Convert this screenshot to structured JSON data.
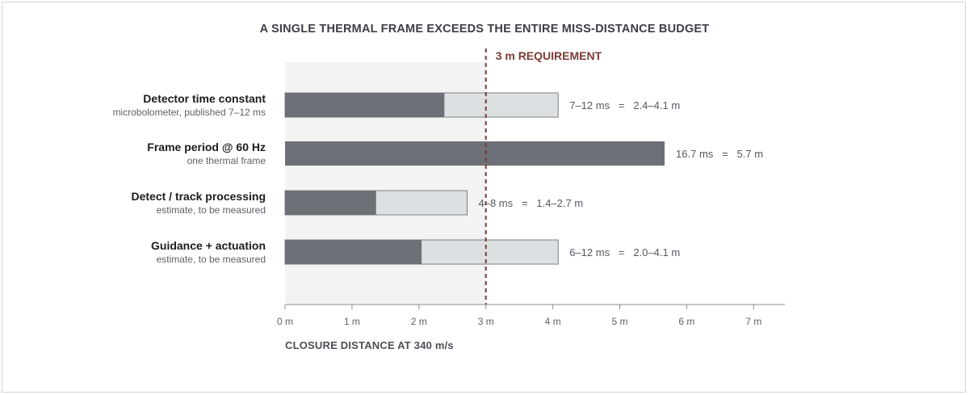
{
  "chart_data": {
    "type": "bar",
    "title": "A SINGLE THERMAL FRAME EXCEEDS THE ENTIRE MISS-DISTANCE BUDGET",
    "xlabel": "CLOSURE DISTANCE AT 340 m/s",
    "xlim": [
      0,
      7.5
    ],
    "x_ticks": [
      {
        "value": 0,
        "label": "0 m"
      },
      {
        "value": 1,
        "label": "1 m"
      },
      {
        "value": 2,
        "label": "2 m"
      },
      {
        "value": 3,
        "label": "3 m"
      },
      {
        "value": 4,
        "label": "4 m"
      },
      {
        "value": 5,
        "label": "5 m"
      },
      {
        "value": 6,
        "label": "6 m"
      },
      {
        "value": 7,
        "label": "7 m"
      }
    ],
    "requirement": {
      "value": 3,
      "label": "3 m REQUIREMENT",
      "color": "#7b3a33"
    },
    "shaded_region": [
      0,
      3
    ],
    "colors": {
      "low": "#6d7076",
      "range": "#dde0e2",
      "shade": "#f2f3f2",
      "range_border": "#7d8085"
    },
    "categories": [
      {
        "label": "Detector time constant",
        "sublabel": "microbolometer, published 7–12 ms",
        "low": 2.38,
        "high": 4.08,
        "annotation": "7–12 ms   =   2.4–4.1 m"
      },
      {
        "label": "Frame period @ 60 Hz",
        "sublabel": "one thermal frame",
        "low": 5.67,
        "high": 5.67,
        "annotation": "16.7 ms   =   5.7 m"
      },
      {
        "label": "Detect / track processing",
        "sublabel": "estimate, to be measured",
        "low": 1.36,
        "high": 2.72,
        "annotation": "4–8 ms   =   1.4–2.7 m"
      },
      {
        "label": "Guidance + actuation",
        "sublabel": "estimate, to be measured",
        "low": 2.04,
        "high": 4.08,
        "annotation": "6–12 ms   =   2.0–4.1 m"
      }
    ]
  }
}
